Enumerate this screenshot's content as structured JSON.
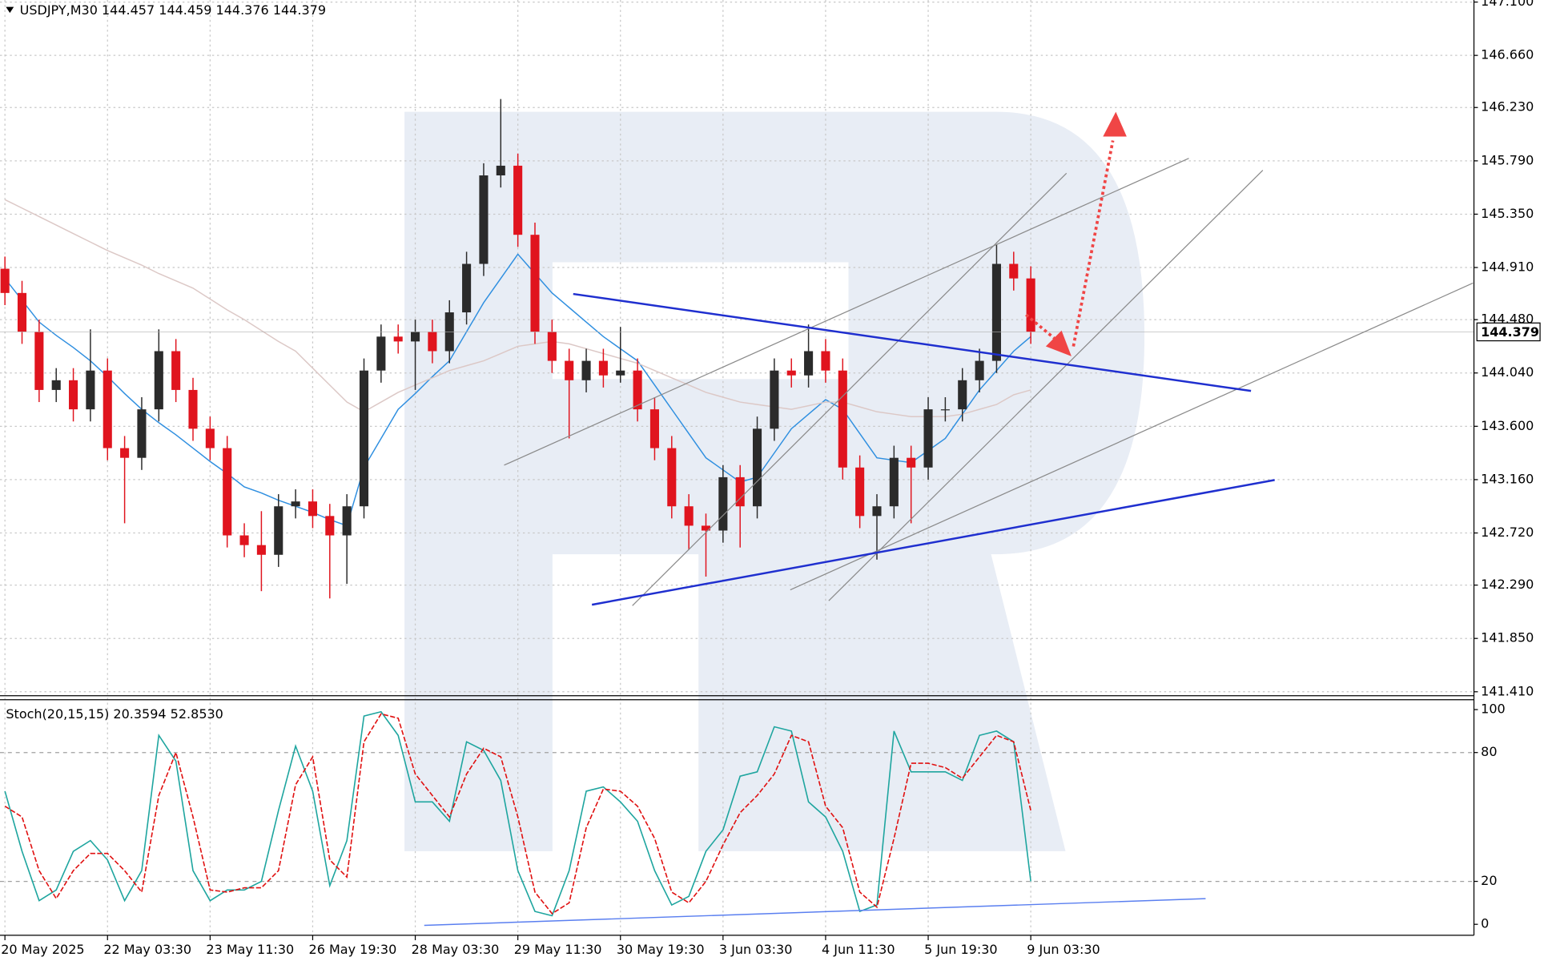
{
  "chart_data": [
    {
      "type": "candlestick",
      "title": "USDJPY,M30  144.457 144.459 144.376 144.379",
      "categories": [
        "20 May 2025",
        null,
        null,
        null,
        null,
        null,
        "22 May 03:30",
        null,
        null,
        null,
        null,
        null,
        "23 May 11:30",
        null,
        null,
        null,
        null,
        null,
        "26 May 19:30",
        null,
        null,
        null,
        null,
        null,
        "28 May 03:30",
        null,
        null,
        null,
        null,
        null,
        "29 May 11:30",
        null,
        null,
        null,
        null,
        null,
        "30 May 19:30",
        null,
        null,
        null,
        null,
        null,
        "3 Jun 03:30",
        null,
        null,
        null,
        null,
        null,
        "4 Jun 11:30",
        null,
        null,
        null,
        null,
        null,
        "5 Jun 19:30",
        null,
        null,
        null,
        null,
        null,
        "9 Jun 03:30"
      ],
      "open": [
        144.9,
        144.7,
        144.38,
        143.9,
        143.98,
        143.74,
        144.06,
        143.42,
        143.34,
        143.74,
        144.22,
        143.9,
        143.58,
        143.42,
        142.7,
        142.62,
        142.54,
        142.94,
        142.98,
        142.86,
        142.7,
        142.94,
        144.06,
        144.34,
        144.3,
        144.38,
        144.22,
        144.54,
        144.94,
        145.67,
        145.75,
        145.18,
        144.38,
        144.14,
        143.98,
        144.14,
        144.02,
        144.06,
        143.74,
        143.42,
        142.94,
        142.78,
        142.74,
        143.18,
        142.94,
        143.58,
        144.06,
        144.02,
        144.22,
        144.06,
        143.26,
        142.86,
        142.94,
        143.34,
        143.26,
        143.74,
        143.74,
        143.98,
        144.14,
        144.94,
        144.82
      ],
      "high": [
        145.0,
        144.8,
        144.48,
        144.08,
        144.08,
        144.4,
        144.16,
        143.52,
        143.84,
        144.4,
        144.32,
        144.0,
        143.68,
        143.52,
        142.8,
        142.9,
        143.04,
        143.08,
        143.08,
        142.96,
        143.04,
        144.16,
        144.44,
        144.44,
        144.48,
        144.48,
        144.64,
        145.04,
        145.77,
        146.3,
        145.85,
        145.28,
        144.48,
        144.24,
        144.24,
        144.24,
        144.42,
        144.16,
        143.84,
        143.52,
        143.04,
        142.88,
        143.28,
        143.28,
        143.68,
        144.16,
        144.16,
        144.44,
        144.32,
        144.16,
        143.36,
        143.04,
        143.44,
        143.44,
        143.84,
        143.84,
        144.08,
        144.24,
        145.1,
        145.04,
        144.92
      ],
      "low": [
        144.6,
        144.28,
        143.8,
        143.8,
        143.64,
        143.64,
        143.32,
        142.8,
        143.24,
        143.64,
        143.8,
        143.48,
        143.32,
        142.6,
        142.52,
        142.24,
        142.44,
        142.84,
        142.76,
        142.18,
        142.3,
        142.84,
        143.96,
        144.2,
        143.9,
        144.12,
        144.12,
        144.44,
        144.84,
        145.57,
        145.08,
        144.28,
        144.04,
        143.5,
        143.88,
        143.92,
        143.96,
        143.64,
        143.32,
        142.84,
        142.58,
        142.36,
        142.64,
        142.6,
        142.84,
        143.48,
        143.92,
        143.92,
        143.96,
        143.16,
        142.76,
        142.5,
        142.84,
        142.8,
        143.16,
        143.64,
        143.64,
        143.88,
        144.04,
        144.72,
        144.28
      ],
      "close": [
        144.7,
        144.38,
        143.9,
        143.98,
        143.74,
        144.06,
        143.42,
        143.34,
        143.74,
        144.22,
        143.9,
        143.58,
        143.42,
        142.7,
        142.62,
        142.54,
        142.94,
        142.98,
        142.86,
        142.7,
        142.94,
        144.06,
        144.34,
        144.3,
        144.38,
        144.22,
        144.54,
        144.94,
        145.67,
        145.75,
        145.18,
        144.38,
        144.14,
        143.98,
        144.14,
        144.02,
        144.06,
        143.74,
        143.42,
        142.94,
        142.78,
        142.74,
        143.18,
        142.94,
        143.58,
        144.06,
        144.02,
        144.22,
        144.06,
        143.26,
        142.86,
        142.94,
        143.34,
        143.26,
        143.74,
        143.74,
        143.98,
        144.14,
        144.94,
        144.82,
        144.379
      ],
      "up_color": "#2b2b2b",
      "down_color": "#e0141e",
      "lines": [
        {
          "color": "#2f8fe0",
          "values": [
            144.82,
            144.64,
            144.46,
            144.35,
            144.25,
            144.14,
            144.01,
            143.87,
            143.74,
            143.63,
            143.53,
            143.42,
            143.31,
            143.21,
            143.1,
            143.05,
            142.99,
            142.94,
            142.89,
            142.83,
            142.78,
            143.26,
            143.5,
            143.74,
            143.87,
            144.01,
            144.14,
            144.38,
            144.62,
            144.82,
            145.02,
            144.86,
            144.7,
            144.58,
            144.46,
            144.34,
            144.24,
            144.14,
            143.94,
            143.74,
            143.54,
            143.34,
            143.24,
            143.14,
            143.18,
            143.38,
            143.58,
            143.7,
            143.82,
            143.74,
            143.54,
            143.34,
            143.32,
            143.3,
            143.4,
            143.5,
            143.7,
            143.9,
            144.06,
            144.22,
            144.34
          ]
        },
        {
          "color": "#dcc8c6",
          "values": [
            145.47,
            145.4,
            145.33,
            145.26,
            145.19,
            145.12,
            145.05,
            144.99,
            144.93,
            144.86,
            144.8,
            144.74,
            144.65,
            144.56,
            144.48,
            144.39,
            144.3,
            144.22,
            144.08,
            143.94,
            143.8,
            143.72,
            143.8,
            143.88,
            143.94,
            144.0,
            144.06,
            144.1,
            144.14,
            144.2,
            144.26,
            144.28,
            144.3,
            144.28,
            144.24,
            144.2,
            144.16,
            144.12,
            144.06,
            144.0,
            143.94,
            143.88,
            143.84,
            143.8,
            143.78,
            143.76,
            143.74,
            143.77,
            143.8,
            143.8,
            143.76,
            143.72,
            143.7,
            143.68,
            143.68,
            143.68,
            143.7,
            143.74,
            143.78,
            143.86,
            143.9
          ]
        }
      ],
      "ylim": [
        141.377,
        147.117
      ],
      "yticks": [
        {
          "value": 141.41,
          "label": "141.410"
        },
        {
          "value": 141.85,
          "label": "141.850"
        },
        {
          "value": 142.29,
          "label": "142.290"
        },
        {
          "value": 142.72,
          "label": "142.720"
        },
        {
          "value": 143.16,
          "label": "143.160"
        },
        {
          "value": 143.6,
          "label": "143.600"
        },
        {
          "value": 144.04,
          "label": "144.040"
        },
        {
          "value": 144.48,
          "label": "144.480"
        },
        {
          "value": 144.91,
          "label": "144.910"
        },
        {
          "value": 145.35,
          "label": "145.350"
        },
        {
          "value": 145.79,
          "label": "145.790"
        },
        {
          "value": 146.23,
          "label": "146.230"
        },
        {
          "value": 146.66,
          "label": "146.660"
        },
        {
          "value": 147.1,
          "label": "147.100"
        }
      ],
      "grid": true,
      "current_price_label": "144.379"
    },
    {
      "type": "line",
      "title": "Stoch(20,15,15) 20.3594 52.8530",
      "series": [
        {
          "color": "#1ea59f",
          "values": [
            62,
            34,
            11,
            16,
            34,
            39,
            30,
            11,
            25,
            88,
            76,
            25,
            11,
            16,
            16,
            20,
            53,
            83,
            62,
            18,
            39,
            97,
            99,
            88,
            57,
            57,
            48,
            85,
            81,
            67,
            25,
            6,
            4,
            25,
            62,
            64,
            57,
            48,
            25,
            9,
            13,
            34,
            44,
            69,
            71,
            92,
            90,
            57,
            50,
            34,
            6,
            9,
            90,
            71,
            71,
            71,
            67,
            88,
            90,
            85,
            20
          ]
        },
        {
          "color": "#e01010",
          "values": [
            55,
            50,
            25,
            12,
            25,
            33,
            33,
            25,
            15,
            60,
            80,
            50,
            16,
            15,
            17,
            17,
            25,
            65,
            78,
            30,
            22,
            85,
            98,
            96,
            70,
            60,
            50,
            70,
            82,
            78,
            50,
            15,
            5,
            10,
            45,
            63,
            62,
            55,
            40,
            15,
            10,
            20,
            37,
            52,
            60,
            70,
            88,
            85,
            55,
            45,
            15,
            8,
            40,
            75,
            75,
            73,
            68,
            78,
            88,
            85,
            53
          ]
        }
      ],
      "ylim": [
        -5.1,
        104.6
      ],
      "yticks": [
        0,
        20,
        80,
        100
      ],
      "dashed_levels": [
        20,
        80
      ]
    }
  ]
}
